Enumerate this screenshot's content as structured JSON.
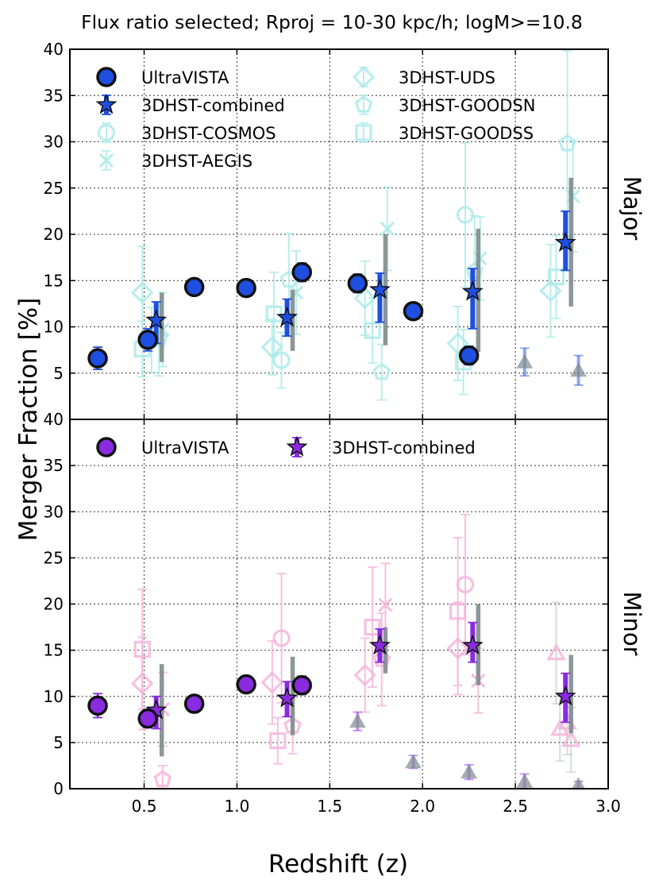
{
  "chart_data": {
    "type": "scatter",
    "title": "Flux ratio selected; Rproj = 10-30 kpc/h; logM>=10.8",
    "xlabel": "Redshift (z)",
    "ylabel": "Merger Fraction [%]",
    "xlim": [
      0.1,
      3.0
    ],
    "ylim": [
      0,
      40
    ],
    "x_ticks": [
      "0.5",
      "1.0",
      "1.5",
      "2.0",
      "2.5",
      "3.0"
    ],
    "y_ticks": [
      "0",
      "5",
      "10",
      "15",
      "20",
      "25",
      "30",
      "35",
      "40"
    ],
    "y_ticks_top_panel": [
      "5",
      "10",
      "15",
      "20",
      "25",
      "30",
      "35",
      "40"
    ],
    "colors": {
      "major": "#1f4fe0",
      "minor": "#8a2be2",
      "major_light": "#aeeaea",
      "minor_light": "#f5b5dc",
      "grey": "#7f8c8d"
    },
    "panels": [
      {
        "name": "Major",
        "legend": [
          {
            "label": "UltraVISTA",
            "marker": "circle-filled"
          },
          {
            "label": "3DHST-combined",
            "marker": "star"
          },
          {
            "label": "3DHST-COSMOS",
            "marker": "circle-open"
          },
          {
            "label": "3DHST-AEGIS",
            "marker": "x"
          },
          {
            "label": "3DHST-UDS",
            "marker": "diamond"
          },
          {
            "label": "3DHST-GOODSN",
            "marker": "pentagon"
          },
          {
            "label": "3DHST-GOODSS",
            "marker": "square"
          }
        ],
        "series": [
          {
            "name": "UltraVISTA",
            "marker": "circle-filled",
            "x": [
              0.25,
              0.52,
              0.77,
              1.05,
              1.35,
              1.65,
              1.95,
              2.25
            ],
            "y": [
              6.6,
              8.6,
              14.3,
              14.2,
              15.9,
              14.7,
              11.7,
              6.9
            ],
            "err": [
              1.2,
              1.2,
              0.8,
              0.8,
              1.0,
              1.0,
              0.8,
              1.0
            ]
          },
          {
            "name": "3DHST-combined",
            "marker": "star",
            "x": [
              0.565,
              1.27,
              1.77,
              2.27,
              2.77
            ],
            "y": [
              10.7,
              11.0,
              14.0,
              13.8,
              19.1
            ],
            "err_lo": [
              2.5,
              2.0,
              3.5,
              4.0,
              3.0
            ],
            "err_hi": [
              2.0,
              2.0,
              1.8,
              2.5,
              3.4
            ],
            "grey_lo": [
              4.5,
              3.6,
              6.0,
              6.5,
              6.9
            ],
            "grey_hi": [
              3.0,
              3.0,
              6.0,
              6.8,
              7.0
            ]
          },
          {
            "name": "3DHST-COSMOS",
            "marker": "circle-open",
            "x": [
              0.54,
              1.24,
              2.23
            ],
            "y": [
              8.6,
              6.4,
              22.1
            ],
            "err": [
              3.5,
              3.0,
              7.8
            ]
          },
          {
            "name": "3DHST-AEGIS",
            "marker": "x",
            "x": [
              0.6,
              1.32,
              1.81,
              2.31,
              2.81
            ],
            "y": [
              9.7,
              13.7,
              20.6,
              17.4,
              24.1
            ],
            "err": [
              4.0,
              4.5,
              4.5,
              4.5,
              6.0
            ]
          },
          {
            "name": "3DHST-UDS",
            "marker": "diamond",
            "x": [
              0.49,
              1.19,
              1.69,
              2.19,
              2.69
            ],
            "y": [
              13.7,
              7.8,
              13.1,
              8.2,
              13.9
            ],
            "err": [
              5.0,
              3.0,
              4.0,
              4.0,
              5.0
            ]
          },
          {
            "name": "3DHST-GOODSN",
            "marker": "pentagon",
            "x": [
              0.58,
              1.28,
              1.78,
              2.28,
              2.78
            ],
            "y": [
              8.7,
              15.1,
              5.1,
              16.0,
              29.8
            ],
            "err": [
              4.0,
              5.0,
              3.0,
              6.0,
              10.0
            ]
          },
          {
            "name": "3DHST-GOODSS",
            "marker": "square",
            "x": [
              0.49,
              1.2,
              1.73,
              2.22,
              2.72
            ],
            "y": [
              7.6,
              11.4,
              9.6,
              6.2,
              15.4
            ],
            "err": [
              3.0,
              4.5,
              3.5,
              3.5,
              4.5
            ]
          },
          {
            "name": "triangle",
            "marker": "triangle",
            "x": [
              2.55,
              2.84
            ],
            "y": [
              6.2,
              5.3
            ],
            "err": [
              1.5,
              1.6
            ]
          }
        ]
      },
      {
        "name": "Minor",
        "legend": [
          {
            "label": "UltraVISTA",
            "marker": "circle-filled"
          },
          {
            "label": "3DHST-combined",
            "marker": "star"
          }
        ],
        "series": [
          {
            "name": "UltraVISTA",
            "marker": "circle-filled",
            "x": [
              0.25,
              0.52,
              0.77,
              1.05,
              1.35
            ],
            "y": [
              9.0,
              7.6,
              9.2,
              11.3,
              11.2
            ],
            "err": [
              1.3,
              1.0,
              0.8,
              0.8,
              1.0
            ]
          },
          {
            "name": "3DHST-combined",
            "marker": "star",
            "x": [
              0.565,
              1.27,
              1.77,
              2.27,
              2.77
            ],
            "y": [
              8.5,
              9.8,
              15.5,
              15.5,
              10.0
            ],
            "err_lo": [
              2.0,
              2.0,
              1.8,
              1.8,
              2.8
            ],
            "err_hi": [
              1.5,
              1.8,
              1.8,
              2.5,
              2.5
            ],
            "grey_lo": [
              5.0,
              4.0,
              3.0,
              4.3,
              4.0
            ],
            "grey_hi": [
              5.0,
              4.5,
              2.0,
              4.5,
              4.5
            ]
          },
          {
            "name": "3DHST-COSMOS",
            "marker": "circle-open",
            "x": [
              1.24,
              2.23
            ],
            "y": [
              16.3,
              22.1
            ],
            "err": [
              7.0,
              7.6
            ]
          },
          {
            "name": "3DHST-AEGIS",
            "marker": "x",
            "x": [
              0.6,
              1.8,
              2.3
            ],
            "y": [
              8.6,
              19.9,
              11.7
            ],
            "err": [
              4.0,
              4.5,
              3.5
            ]
          },
          {
            "name": "3DHST-UDS",
            "marker": "diamond",
            "x": [
              0.49,
              1.19,
              1.69,
              2.19
            ],
            "y": [
              11.4,
              11.5,
              12.3,
              15.2
            ],
            "err": [
              5.0,
              4.5,
              4.0,
              5.0
            ]
          },
          {
            "name": "3DHST-GOODSN",
            "marker": "pentagon",
            "x": [
              0.6,
              1.3,
              1.78
            ],
            "y": [
              1.0,
              6.8,
              14.0
            ],
            "err": [
              1.5,
              3.0,
              5.0
            ]
          },
          {
            "name": "3DHST-GOODSS",
            "marker": "square",
            "x": [
              0.49,
              1.22,
              1.73,
              2.19
            ],
            "y": [
              15.1,
              5.2,
              17.5,
              19.2
            ],
            "err": [
              6.5,
              2.5,
              6.5,
              8.0
            ]
          },
          {
            "name": "triangle-pink",
            "marker": "triangle",
            "x": [
              2.72,
              2.78,
              2.8,
              2.74
            ],
            "y": [
              14.7,
              7.2,
              5.3,
              6.5
            ],
            "err": [
              5.5,
              3.5,
              3.5,
              3.5
            ]
          },
          {
            "name": "triangle-grey",
            "marker": "triangle",
            "x": [
              1.65,
              1.95,
              2.25,
              2.55,
              2.84
            ],
            "y": [
              7.3,
              2.9,
              1.8,
              0.8,
              0.4
            ],
            "err": [
              1.0,
              0.7,
              0.8,
              0.8,
              0.4
            ]
          }
        ]
      }
    ]
  }
}
